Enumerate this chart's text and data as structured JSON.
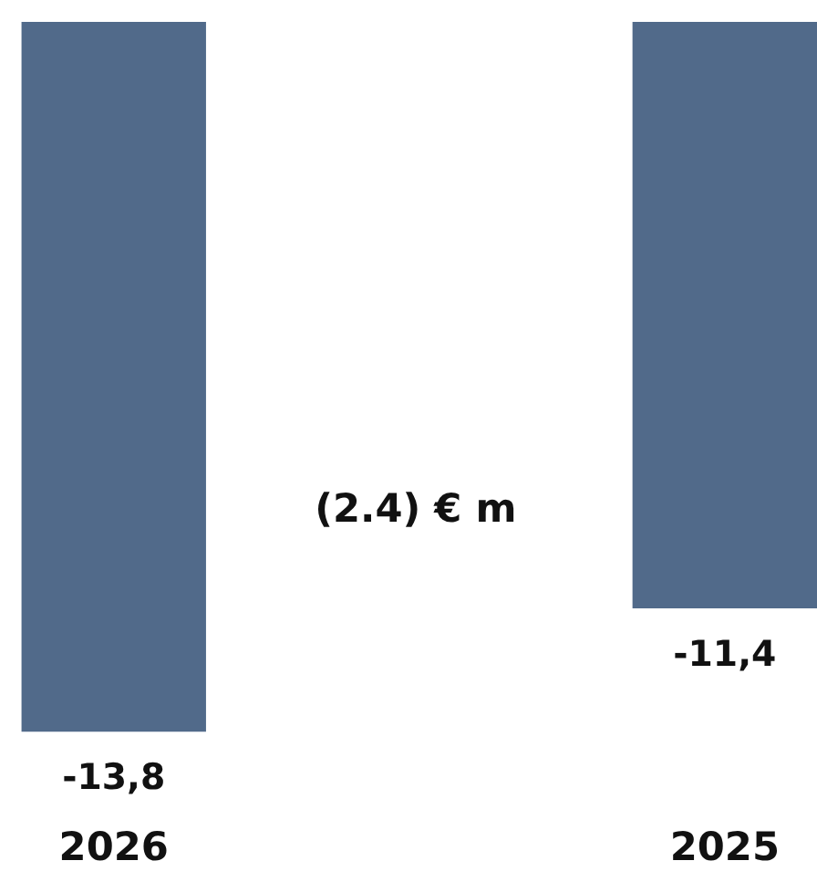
{
  "chart_data": {
    "type": "bar",
    "categories": [
      "2026",
      "2025"
    ],
    "values": [
      -13.8,
      -11.4
    ],
    "value_labels": [
      "-13,8",
      "-11,4"
    ],
    "color": "#516a8a",
    "annotations": [
      "(2.4) € m"
    ],
    "grid": false
  }
}
